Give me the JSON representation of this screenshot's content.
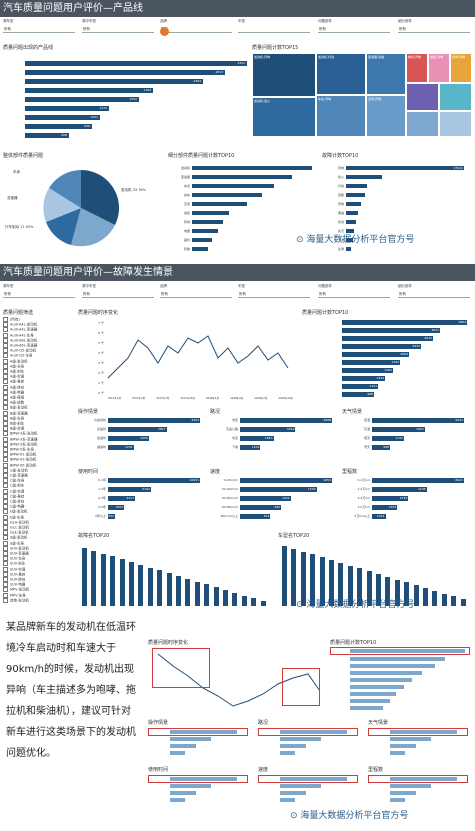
{
  "section1": {
    "title": "汽车质量问题用户评价—产品线",
    "filters": [
      {
        "label": "源车型",
        "value": "所有"
      },
      {
        "label": "源中车型",
        "value": "所有"
      },
      {
        "label": "品牌",
        "value": "所有"
      },
      {
        "label": "车型",
        "value": ""
      },
      {
        "label": "问题部件",
        "value": "所有"
      },
      {
        "label": "细分部件",
        "value": "所有"
      }
    ],
    "product_line_title": "质量问题出现的产品线",
    "product_line_values": [
      "3341",
      "2813",
      "2493",
      "1784",
      "1592",
      "1172",
      "1041",
      "938",
      "608"
    ],
    "treemap_title": "质量问题计数TOP15",
    "treemap_cells": [
      "发动机-异响",
      "发动机-熄火",
      "发动机-抖动",
      "车身-异响",
      "变速器-顿挫",
      "空调-异味",
      "制动-异响",
      "悬挂-异响",
      "转向-异响"
    ],
    "pie_title": "整体部件质量问题",
    "pie_labels": [
      "发动机",
      "行车制动",
      "车身",
      "变速器",
      "电器"
    ],
    "pie_pcts": [
      "33.76%",
      "11.93%"
    ],
    "top10a_title": "细分部件质量问题计数TOP10",
    "top10a_labels": [
      "发动机",
      "变速器",
      "车身",
      "刹车",
      "空调",
      "悬挂",
      "转向",
      "电器",
      "座椅",
      "轮胎"
    ],
    "top10a_values": [
      "3130",
      "2642",
      "2171",
      "1837",
      "1447",
      "982",
      "815",
      "694",
      "531",
      "418"
    ],
    "top10b_title": "故障计数TOP10",
    "top10b_labels": [
      "异响",
      "熄火",
      "抖动",
      "顿挫",
      "异味",
      "漏油",
      "松动",
      "失灵",
      "卡滞",
      "生锈"
    ],
    "top10b_values": [
      "17644",
      "5342",
      "3112",
      "2841",
      "2193",
      "1802",
      "1520",
      "1231",
      "983",
      "702"
    ]
  },
  "watermark": "海量大数据分析平台官方号",
  "section2": {
    "title": "汽车质量问题用户评价—故障发生情景",
    "filters": [
      {
        "label": "源车型",
        "value": "所有"
      },
      {
        "label": "源中车型",
        "value": "所有"
      },
      {
        "label": "品牌",
        "value": "所有"
      },
      {
        "label": "车型",
        "value": "所有"
      },
      {
        "label": "问题部件",
        "value": "所有"
      },
      {
        "label": "细分部件",
        "value": "所有"
      }
    ],
    "filter_list_title": "质量问题筛选",
    "filter_items": [
      "(所有)",
      "Audi-A4L-发动机",
      "Audi-A4L-变速器",
      "Audi-A4L-车身",
      "Audi-A6L-发动机",
      "Audi-A6L-变速器",
      "Audi-Q5-发动机",
      "Audi-Q5-车身",
      "A级-发动机",
      "A级-车身",
      "A级-刹车",
      "A级-空调",
      "A级-悬挂",
      "A级-转向",
      "A级-电器",
      "A级-座椅",
      "A级-轮胎",
      "B级-发动机",
      "B级-变速器",
      "B级-车身",
      "B级-刹车",
      "B级-空调",
      "BMW-3系-发动机",
      "BMW-3系-变速器",
      "BMW-5系-发动机",
      "BMW-5系-车身",
      "BMW-X1-发动机",
      "BMW-X3-发动机",
      "BMW-X5-发动机",
      "C级-发动机",
      "C级-变速器",
      "C级-车身",
      "C级-刹车",
      "C级-空调",
      "C级-悬挂",
      "C级-转向",
      "C级-电器",
      "E级-发动机",
      "E级-车身",
      "GLA-发动机",
      "GLC-发动机",
      "GLE-发动机",
      "S级-发动机",
      "S级-车身",
      "SUV-发动机",
      "SUV-变速器",
      "SUV-车身",
      "SUV-刹车",
      "SUV-空调",
      "SUV-悬挂",
      "SUV-转向",
      "SUV-电器",
      "MPV-发动机",
      "MPV-车身",
      "其他-发动机"
    ],
    "trend_title": "质量问题时序变化",
    "trend_months": [
      "2017年1月",
      "2017年4月",
      "2017年7月",
      "2017年10月",
      "2018年1月",
      "2018年4月",
      "2018年7月",
      "2018年10月"
    ],
    "trend_ticks": [
      "7 千",
      "6 千",
      "5 千",
      "4 千",
      "3 千",
      "2 千",
      "1 千",
      "0 千"
    ],
    "top10c_title": "质量问题计数TOP10",
    "top10c_values": [
      "3864",
      "3021",
      "2810",
      "2432",
      "2084",
      "1792",
      "1582",
      "1342",
      "1101",
      "988"
    ],
    "small_panels": [
      {
        "title": "操作情景",
        "labels": [
          "冷启动时",
          "怠速时",
          "加速时",
          "减速时"
        ],
        "values": [
          "4423",
          "2817",
          "1956",
          "1231"
        ]
      },
      {
        "title": "路况",
        "labels": [
          "市区",
          "高速公路",
          "坑洼",
          "下坡"
        ],
        "values": [
          "4998",
          "3012",
          "1820",
          "1104"
        ]
      },
      {
        "title": "天气情景",
        "labels": [
          "低温",
          "高温",
          "雨天",
          "雪天"
        ],
        "values": [
          "5041",
          "2902",
          "1744",
          "988"
        ]
      },
      {
        "title": "使用时间",
        "labels": [
          "0-1年",
          "1-2年",
          "2-3年",
          "3-5年",
          "5年以上"
        ],
        "values": [
          "10931",
          "5102",
          "3217",
          "1903",
          "842"
        ]
      },
      {
        "title": "速度",
        "labels": [
          "0-20km/h",
          "20-40km/h",
          "40-60km/h",
          "60-80km/h",
          "80km/h以上"
        ],
        "values": [
          "1853",
          "1542",
          "1021",
          "830",
          "612"
        ]
      },
      {
        "title": "里程数",
        "labels": [
          "0-1万km",
          "1-2万km",
          "2-3万km",
          "3-5万km",
          "5万km以上"
        ],
        "values": [
          "6921",
          "4105",
          "2733",
          "1902",
          "1021"
        ]
      }
    ],
    "col_chart_a_title": "故障名TOP20",
    "col_chart_b_title": "车型名TOP20"
  },
  "section3": {
    "paragraph": "某品牌新车的发动机在低温环境冷车启动时和车速大于90km/h的时候，发动机出现异响（车主描述多为咆哮、拖拉机和柴油机），建议可针对新车进行这类场景下的发动机问题优化。",
    "trend_title": "质量问题时序变化",
    "top_title": "质量问题计数TOP10",
    "panel_titles": [
      "操作情景",
      "路况",
      "天气情景",
      "使用时间",
      "速度",
      "里程数"
    ]
  },
  "colors": {
    "accent": "#1f4e79",
    "band": "#4a5560",
    "highlight": "#d43c3c"
  }
}
